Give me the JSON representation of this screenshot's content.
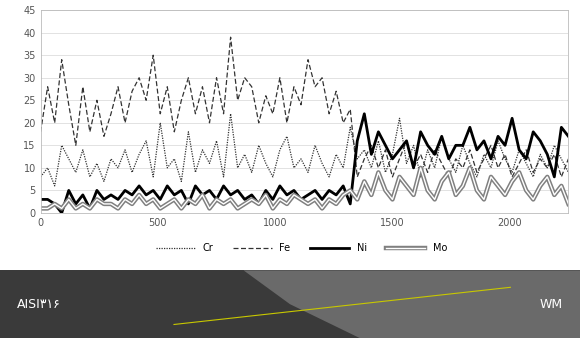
{
  "chart_data": {
    "type": "line",
    "x": [
      0,
      30,
      60,
      90,
      120,
      150,
      180,
      210,
      240,
      270,
      300,
      330,
      360,
      390,
      420,
      450,
      480,
      510,
      540,
      570,
      600,
      630,
      660,
      690,
      720,
      750,
      780,
      810,
      840,
      870,
      900,
      930,
      960,
      990,
      1020,
      1050,
      1080,
      1110,
      1140,
      1170,
      1200,
      1230,
      1260,
      1290,
      1320,
      1350,
      1380,
      1410,
      1440,
      1470,
      1500,
      1530,
      1560,
      1590,
      1620,
      1650,
      1680,
      1710,
      1740,
      1770,
      1800,
      1830,
      1860,
      1890,
      1920,
      1950,
      1980,
      2010,
      2040,
      2070,
      2100,
      2130,
      2160,
      2190,
      2220,
      2250
    ],
    "series": [
      {
        "name": "Cr",
        "color": "#333333",
        "line_style": "dotted",
        "values": [
          8,
          10,
          6,
          15,
          12,
          9,
          14,
          8,
          11,
          7,
          12,
          10,
          14,
          9,
          13,
          16,
          8,
          20,
          10,
          12,
          7,
          18,
          9,
          14,
          11,
          16,
          8,
          22,
          10,
          13,
          9,
          15,
          11,
          8,
          14,
          17,
          10,
          12,
          9,
          15,
          11,
          8,
          13,
          10,
          19,
          12,
          14,
          10,
          16,
          9,
          13,
          21,
          11,
          15,
          8,
          14,
          10,
          17,
          12,
          9,
          15,
          11,
          8,
          13,
          10,
          16,
          12,
          9,
          14,
          11,
          8,
          13,
          10,
          15,
          12,
          9
        ]
      },
      {
        "name": "Fe",
        "color": "#333333",
        "line_style": "dashed",
        "values": [
          18,
          28,
          20,
          34,
          24,
          15,
          28,
          18,
          25,
          17,
          22,
          28,
          20,
          27,
          30,
          25,
          35,
          22,
          28,
          18,
          25,
          30,
          22,
          28,
          20,
          30,
          22,
          39,
          25,
          30,
          28,
          20,
          26,
          22,
          30,
          20,
          28,
          24,
          34,
          28,
          30,
          22,
          27,
          20,
          23,
          8,
          12,
          15,
          10,
          14,
          8,
          12,
          16,
          10,
          13,
          9,
          14,
          11,
          8,
          12,
          10,
          14,
          9,
          12,
          15,
          10,
          13,
          8,
          11,
          14,
          9,
          12,
          10,
          13,
          8,
          12
        ]
      },
      {
        "name": "Ni",
        "color": "#000000",
        "line_style": "solid",
        "values": [
          3,
          3,
          2,
          0,
          5,
          2,
          4,
          1,
          5,
          3,
          4,
          3,
          5,
          4,
          6,
          4,
          5,
          3,
          6,
          4,
          5,
          2,
          6,
          4,
          5,
          3,
          6,
          4,
          5,
          3,
          4,
          2,
          5,
          3,
          6,
          4,
          5,
          3,
          4,
          5,
          3,
          5,
          4,
          6,
          2,
          16,
          22,
          13,
          18,
          15,
          12,
          14,
          16,
          10,
          18,
          15,
          13,
          17,
          12,
          15,
          15,
          19,
          14,
          16,
          12,
          17,
          15,
          21,
          14,
          12,
          18,
          16,
          13,
          8,
          19,
          17
        ]
      },
      {
        "name": "Mo",
        "color": "#808080",
        "line_style": "double",
        "values": [
          1,
          1,
          2,
          1,
          3,
          1,
          2,
          1,
          3,
          2,
          2,
          1,
          3,
          2,
          4,
          2,
          3,
          1,
          2,
          3,
          1,
          3,
          2,
          4,
          1,
          3,
          2,
          3,
          1,
          2,
          3,
          2,
          4,
          1,
          3,
          2,
          4,
          3,
          2,
          3,
          1,
          3,
          2,
          4,
          5,
          3,
          7,
          4,
          9,
          5,
          3,
          8,
          6,
          4,
          10,
          5,
          3,
          7,
          9,
          4,
          6,
          10,
          5,
          3,
          8,
          6,
          4,
          7,
          9,
          5,
          3,
          6,
          8,
          4,
          6,
          2
        ]
      }
    ],
    "xlim": [
      0,
      2250
    ],
    "xticks": [
      0,
      500,
      1000,
      1500,
      2000
    ],
    "ylim": [
      0,
      45
    ],
    "yticks": [
      0,
      5,
      10,
      15,
      20,
      25,
      30,
      35,
      40,
      45
    ],
    "grid": true,
    "legend": "lower center"
  },
  "micrograph": {
    "left_label": "AISI۳۱۶",
    "right_label": "WM"
  }
}
